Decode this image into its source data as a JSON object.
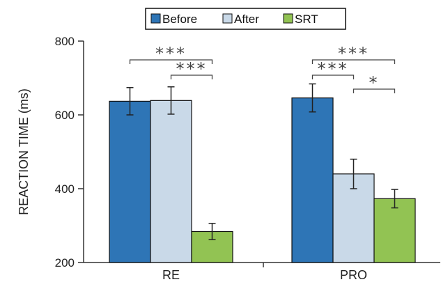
{
  "chart_data": {
    "type": "bar",
    "categories": [
      "RE",
      "PRO"
    ],
    "series": [
      {
        "name": "Before",
        "values": [
          637,
          646
        ],
        "errors": [
          37,
          38
        ],
        "color": "#2e75b6"
      },
      {
        "name": "After",
        "values": [
          639,
          440
        ],
        "errors": [
          37,
          40
        ],
        "color": "#c9d9e8"
      },
      {
        "name": "SRT",
        "values": [
          284,
          373
        ],
        "errors": [
          22,
          25
        ],
        "color": "#92c353"
      }
    ],
    "ylabel": "REACTION TIME (ms)",
    "xlabel": "",
    "ylim": [
      200,
      800
    ],
    "yticks": [
      200,
      400,
      600,
      800
    ],
    "legend": "top-center",
    "grid": false,
    "significance": [
      {
        "category": "RE",
        "from": "Before",
        "to": "SRT",
        "label": "***"
      },
      {
        "category": "RE",
        "from": "After",
        "to": "SRT",
        "label": "***"
      },
      {
        "category": "PRO",
        "from": "Before",
        "to": "SRT",
        "label": "***"
      },
      {
        "category": "PRO",
        "from": "Before",
        "to": "After",
        "label": "***"
      },
      {
        "category": "PRO",
        "from": "After",
        "to": "SRT",
        "label": "*"
      }
    ]
  }
}
